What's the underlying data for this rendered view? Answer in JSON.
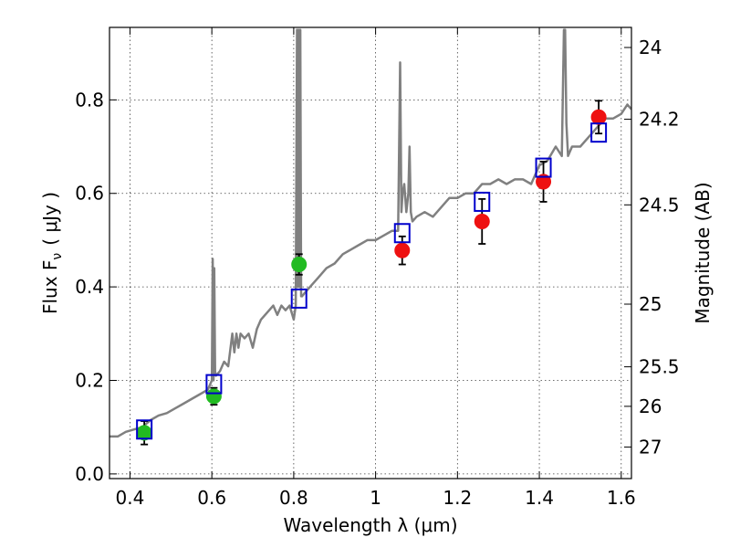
{
  "chart_data": {
    "type": "scatter",
    "xlabel": "Wavelength  λ (μm)",
    "ylabel": "Flux  F",
    "ylabel_sub": "ν",
    "ylabel_unit": "( μJy )",
    "y2label": "Magnitude (AB)",
    "xlim": [
      0.35,
      1.625
    ],
    "ylim": [
      -0.01,
      0.955
    ],
    "grid": true,
    "x_ticks": [
      {
        "value": 0.4,
        "label": "0.4"
      },
      {
        "value": 0.6,
        "label": "0.6"
      },
      {
        "value": 0.8,
        "label": "0.8"
      },
      {
        "value": 1.0,
        "label": "1"
      },
      {
        "value": 1.2,
        "label": "1.2"
      },
      {
        "value": 1.4,
        "label": "1.4"
      },
      {
        "value": 1.6,
        "label": "1.6"
      }
    ],
    "y_ticks": [
      {
        "value": 0.0,
        "label": "0.0"
      },
      {
        "value": 0.2,
        "label": "0.2"
      },
      {
        "value": 0.4,
        "label": "0.4"
      },
      {
        "value": 0.6,
        "label": "0.6"
      },
      {
        "value": 0.8,
        "label": "0.8"
      }
    ],
    "y2_ticks": [
      {
        "value": 24,
        "label": "24"
      },
      {
        "value": 24.2,
        "label": "24.2"
      },
      {
        "value": 24.5,
        "label": "24.5"
      },
      {
        "value": 25,
        "label": "25"
      },
      {
        "value": 25.5,
        "label": "25.5"
      },
      {
        "value": 26,
        "label": "26"
      },
      {
        "value": 27,
        "label": "27"
      }
    ],
    "colors": {
      "spectrum": "#808080",
      "optical_points": "#22bb22",
      "nir_points": "#ee1111",
      "model_squares": "#0000cc",
      "errorbars": "#000000"
    },
    "series": [
      {
        "kind": "line",
        "x": [
          0.35,
          0.37,
          0.39,
          0.41,
          0.43,
          0.45,
          0.47,
          0.49,
          0.51,
          0.53,
          0.55,
          0.57,
          0.59,
          0.6,
          0.602,
          0.604,
          0.606,
          0.608,
          0.61,
          0.62,
          0.63,
          0.64,
          0.65,
          0.655,
          0.66,
          0.665,
          0.67,
          0.68,
          0.69,
          0.7,
          0.71,
          0.72,
          0.73,
          0.74,
          0.75,
          0.76,
          0.77,
          0.78,
          0.79,
          0.8,
          0.805,
          0.808,
          0.81,
          0.812,
          0.814,
          0.816,
          0.818,
          0.82,
          0.83,
          0.84,
          0.86,
          0.88,
          0.9,
          0.92,
          0.94,
          0.96,
          0.98,
          1.0,
          1.02,
          1.04,
          1.055,
          1.06,
          1.063,
          1.066,
          1.07,
          1.075,
          1.08,
          1.083,
          1.086,
          1.09,
          1.1,
          1.12,
          1.14,
          1.16,
          1.18,
          1.2,
          1.22,
          1.24,
          1.26,
          1.28,
          1.3,
          1.32,
          1.34,
          1.36,
          1.38,
          1.4,
          1.42,
          1.44,
          1.455,
          1.46,
          1.463,
          1.466,
          1.47,
          1.48,
          1.5,
          1.52,
          1.54,
          1.56,
          1.58,
          1.6,
          1.615,
          1.625
        ],
        "y": [
          0.08,
          0.08,
          0.09,
          0.095,
          0.1,
          0.115,
          0.125,
          0.13,
          0.14,
          0.15,
          0.16,
          0.17,
          0.18,
          0.2,
          0.46,
          0.2,
          0.44,
          0.22,
          0.21,
          0.22,
          0.24,
          0.23,
          0.3,
          0.26,
          0.3,
          0.27,
          0.3,
          0.29,
          0.3,
          0.27,
          0.31,
          0.33,
          0.34,
          0.35,
          0.36,
          0.34,
          0.36,
          0.35,
          0.36,
          0.33,
          0.36,
          0.95,
          0.4,
          0.95,
          0.4,
          0.95,
          0.38,
          0.38,
          0.39,
          0.4,
          0.42,
          0.44,
          0.45,
          0.47,
          0.48,
          0.49,
          0.5,
          0.5,
          0.51,
          0.52,
          0.52,
          0.88,
          0.56,
          0.6,
          0.62,
          0.56,
          0.6,
          0.7,
          0.56,
          0.54,
          0.55,
          0.56,
          0.55,
          0.57,
          0.59,
          0.59,
          0.6,
          0.6,
          0.62,
          0.62,
          0.63,
          0.62,
          0.63,
          0.63,
          0.62,
          0.66,
          0.67,
          0.7,
          0.68,
          0.95,
          0.95,
          0.75,
          0.68,
          0.7,
          0.7,
          0.72,
          0.74,
          0.76,
          0.76,
          0.77,
          0.79,
          0.78
        ]
      },
      {
        "kind": "points",
        "group": "optical",
        "x": [
          0.435,
          0.605,
          0.813
        ],
        "y": [
          0.088,
          0.166,
          0.448
        ],
        "yerr": [
          0.025,
          0.018,
          0.022
        ]
      },
      {
        "kind": "points",
        "group": "nir",
        "x": [
          1.065,
          1.26,
          1.41,
          1.545
        ],
        "y": [
          0.478,
          0.54,
          0.625,
          0.763
        ],
        "yerr": [
          0.03,
          0.048,
          0.043,
          0.035
        ]
      },
      {
        "kind": "squares",
        "group": "model",
        "x": [
          0.435,
          0.605,
          0.813,
          1.065,
          1.26,
          1.41,
          1.545
        ],
        "y": [
          0.095,
          0.192,
          0.375,
          0.515,
          0.582,
          0.655,
          0.73
        ]
      }
    ]
  }
}
